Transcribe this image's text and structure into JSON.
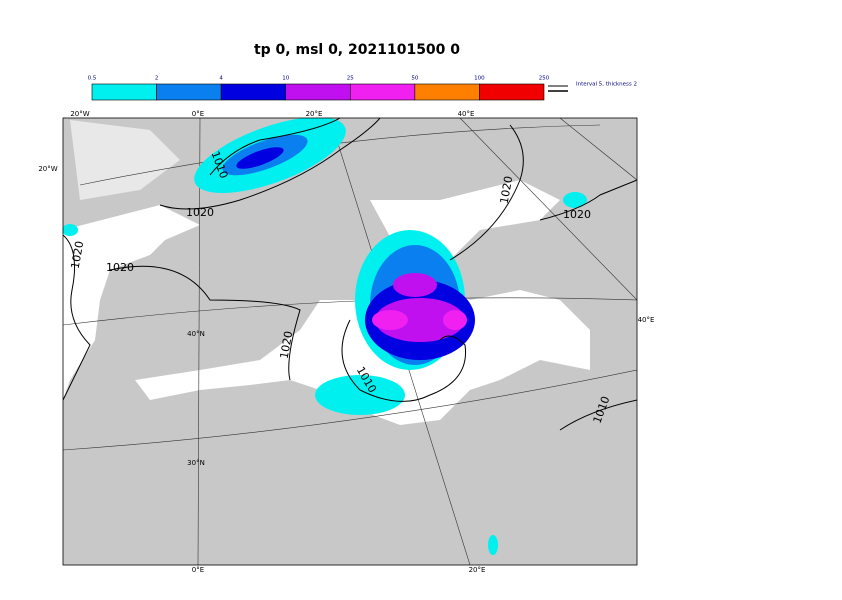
{
  "title": "tp 0, msl 0, 2021101500 0",
  "colorbar": {
    "levels": [
      0.5,
      2,
      4,
      10,
      25,
      50,
      100,
      250
    ],
    "colors": [
      "#00f0f0",
      "#0a80f0",
      "#0000e0",
      "#c010f0",
      "#f020f0",
      "#ff8000",
      "#f00000"
    ],
    "note": "Interval 5, thickness 2"
  },
  "graticule_labels": [
    "20°W",
    "0°E",
    "20°E",
    "40°E",
    "20°W",
    "40°N",
    "30°N",
    "40°E",
    "0°E",
    "20°E"
  ],
  "contour_labels": [
    "1010",
    "1020",
    "1020",
    "1020",
    "1020",
    "1010",
    "1020",
    "1020",
    "1010"
  ]
}
